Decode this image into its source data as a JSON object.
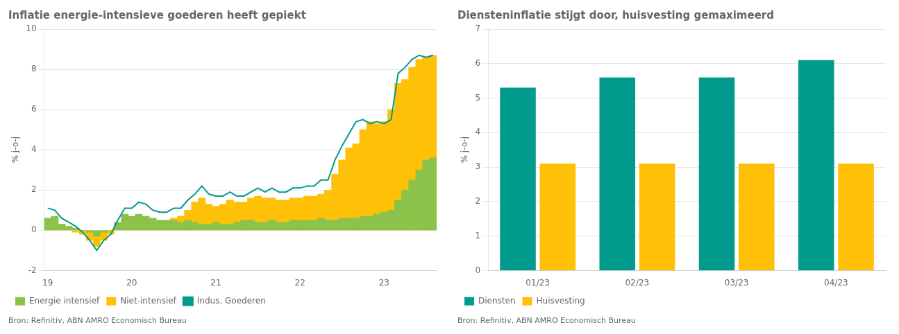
{
  "chart_data": [
    {
      "type": "bar",
      "title": "Inflatie energie-intensieve goederen heeft gepiekt",
      "y_label": "% j-o-j",
      "annotations": [
        "Bron: Refinitiv, ABN AMRO Economisch Bureau"
      ],
      "categories": [
        "19",
        null,
        null,
        null,
        null,
        null,
        null,
        null,
        null,
        null,
        null,
        null,
        "20",
        null,
        null,
        null,
        null,
        null,
        null,
        null,
        null,
        null,
        null,
        null,
        "21",
        null,
        null,
        null,
        null,
        null,
        null,
        null,
        null,
        null,
        null,
        null,
        "22",
        null,
        null,
        null,
        null,
        null,
        null,
        null,
        null,
        null,
        null,
        null,
        "23",
        null,
        null,
        null,
        null,
        null,
        null,
        null
      ],
      "series": [
        {
          "name": "Energie intensief",
          "type": "bar",
          "color": "#8BC34A",
          "values": [
            0.6,
            0.7,
            0.3,
            0.2,
            0.1,
            0.0,
            -0.1,
            -0.3,
            -0.1,
            0.0,
            0.4,
            0.8,
            0.7,
            0.8,
            0.7,
            0.6,
            0.5,
            0.5,
            0.5,
            0.4,
            0.5,
            0.4,
            0.3,
            0.3,
            0.4,
            0.3,
            0.3,
            0.4,
            0.5,
            0.5,
            0.4,
            0.4,
            0.5,
            0.4,
            0.4,
            0.5,
            0.5,
            0.5,
            0.5,
            0.6,
            0.5,
            0.5,
            0.6,
            0.6,
            0.6,
            0.7,
            0.7,
            0.8,
            0.9,
            1.0,
            1.5,
            2.0,
            2.5,
            3.0,
            3.5,
            3.6
          ]
        },
        {
          "name": "Niet-intensief",
          "type": "bar",
          "color": "#FFC107",
          "values": [
            0.5,
            0.5,
            0.3,
            0.2,
            -0.1,
            -0.2,
            -0.5,
            -0.8,
            -0.5,
            -0.2,
            0.3,
            0.5,
            0.5,
            0.6,
            0.5,
            0.4,
            0.4,
            0.4,
            0.6,
            0.7,
            1.0,
            1.4,
            1.6,
            1.3,
            1.2,
            1.3,
            1.5,
            1.4,
            1.4,
            1.6,
            1.7,
            1.6,
            1.6,
            1.5,
            1.5,
            1.6,
            1.6,
            1.7,
            1.7,
            1.8,
            2.0,
            2.8,
            3.5,
            4.1,
            4.3,
            5.0,
            5.4,
            5.3,
            5.4,
            6.0,
            7.3,
            7.5,
            8.1,
            8.5,
            8.6,
            8.7
          ]
        },
        {
          "name": "Indus. Goederen",
          "type": "line",
          "color": "#009B8D",
          "values": [
            1.1,
            1.0,
            0.6,
            0.4,
            0.2,
            -0.1,
            -0.5,
            -1.0,
            -0.5,
            -0.2,
            0.5,
            1.1,
            1.1,
            1.4,
            1.3,
            1.0,
            0.9,
            0.9,
            1.1,
            1.1,
            1.5,
            1.8,
            2.2,
            1.8,
            1.7,
            1.7,
            1.9,
            1.7,
            1.7,
            1.9,
            2.1,
            1.9,
            2.1,
            1.9,
            1.9,
            2.1,
            2.1,
            2.2,
            2.2,
            2.5,
            2.5,
            3.5,
            4.2,
            4.8,
            5.4,
            5.5,
            5.3,
            5.4,
            5.3,
            5.5,
            7.8,
            8.1,
            8.5,
            8.7,
            8.6,
            8.7
          ]
        }
      ],
      "ylim": [
        -2,
        10
      ],
      "yticks": [
        -2,
        0,
        2,
        4,
        6,
        8,
        10
      ],
      "grid": true,
      "legend": "bottom"
    },
    {
      "type": "bar",
      "title": "Diensteninflatie stijgt door, huisvesting gemaximeerd",
      "y_label": "% j-o-j",
      "annotations": [
        "Bron: Refinitiv, ABN AMRO Economisch Bureau"
      ],
      "categories": [
        "01/23",
        "02/23",
        "03/23",
        "04/23"
      ],
      "series": [
        {
          "name": "Diensten",
          "type": "bar",
          "color": "#009B8D",
          "values": [
            5.3,
            5.6,
            5.6,
            6.1
          ]
        },
        {
          "name": "Huisvesting",
          "type": "bar",
          "color": "#FFC107",
          "values": [
            3.1,
            3.1,
            3.1,
            3.1
          ]
        }
      ],
      "ylim": [
        0,
        7
      ],
      "yticks": [
        0,
        1,
        2,
        3,
        4,
        5,
        6,
        7
      ],
      "grid": true,
      "legend": "bottom"
    }
  ]
}
